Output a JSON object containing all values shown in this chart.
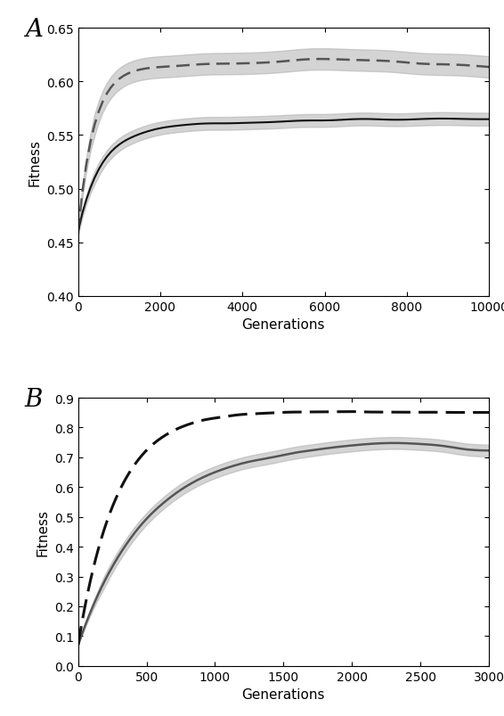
{
  "panel_A": {
    "xlim": [
      0,
      10000
    ],
    "ylim": [
      0.4,
      0.65
    ],
    "xticks": [
      0,
      2000,
      4000,
      6000,
      8000,
      10000
    ],
    "yticks": [
      0.4,
      0.45,
      0.5,
      0.55,
      0.6,
      0.65
    ],
    "xlabel": "Generations",
    "ylabel": "Fitness",
    "label": "A",
    "solid_color": "#111111",
    "dashed_color": "#555555",
    "shade_alpha": 0.5,
    "shade_color": "#aaaaaa"
  },
  "panel_B": {
    "xlim": [
      0,
      3000
    ],
    "ylim": [
      0.0,
      0.9
    ],
    "xticks": [
      0,
      500,
      1000,
      1500,
      2000,
      2500,
      3000
    ],
    "yticks": [
      0.0,
      0.1,
      0.2,
      0.3,
      0.4,
      0.5,
      0.6,
      0.7,
      0.8,
      0.9
    ],
    "xlabel": "Generations",
    "ylabel": "Fitness",
    "label": "B",
    "solid_color": "#555555",
    "dashed_color": "#111111",
    "shade_alpha": 0.5,
    "shade_color": "#aaaaaa"
  },
  "fig_width": 5.66,
  "fig_height": 8.04,
  "background_color": "#ffffff"
}
